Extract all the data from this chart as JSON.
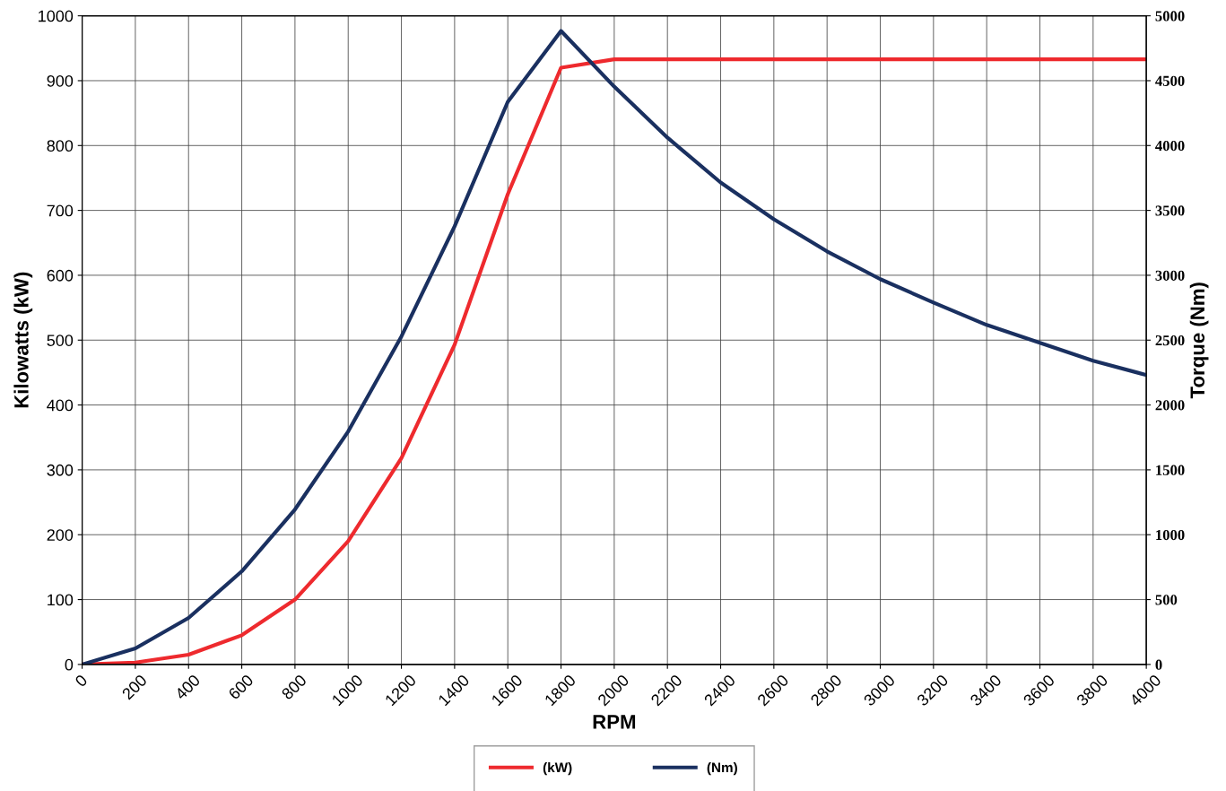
{
  "chart_data": {
    "type": "line",
    "xlabel": "RPM",
    "ylabel": "Kilowatts (kW)",
    "y2label": "Torque (Nm)",
    "x": [
      0,
      200,
      400,
      600,
      800,
      1000,
      1200,
      1400,
      1600,
      1800,
      2000,
      2200,
      2400,
      2600,
      2800,
      3000,
      3200,
      3400,
      3600,
      3800,
      4000
    ],
    "series": [
      {
        "name": "(kW)",
        "color": "#ee2a2e",
        "values": [
          0,
          3,
          15,
          45,
          100,
          190,
          318,
          493,
          725,
          920,
          933,
          933,
          933,
          933,
          933,
          933,
          933,
          933,
          933,
          933,
          933
        ]
      },
      {
        "name": "(Nm)",
        "color": "#1a3060",
        "axis": "y2",
        "values": [
          0,
          124,
          359,
          718,
          1195,
          1796,
          2528,
          3377,
          4337,
          4883,
          4454,
          4061,
          3715,
          3432,
          3184,
          2970,
          2790,
          2617,
          2479,
          2341,
          2231
        ]
      }
    ],
    "xlim": [
      0,
      4000
    ],
    "xticks": [
      0,
      200,
      400,
      600,
      800,
      1000,
      1200,
      1400,
      1600,
      1800,
      2000,
      2200,
      2400,
      2600,
      2800,
      3000,
      3200,
      3400,
      3600,
      3800,
      4000
    ],
    "ylim": [
      0,
      1000
    ],
    "yticks": [
      0,
      100,
      200,
      300,
      400,
      500,
      600,
      700,
      800,
      900,
      1000
    ],
    "y2lim": [
      0,
      5000
    ],
    "y2ticks": [
      0,
      500,
      1000,
      1500,
      2000,
      2500,
      3000,
      3500,
      4000,
      4500,
      5000
    ],
    "grid": true,
    "legend": "bottom",
    "marker": "none",
    "line_style": "solid"
  }
}
